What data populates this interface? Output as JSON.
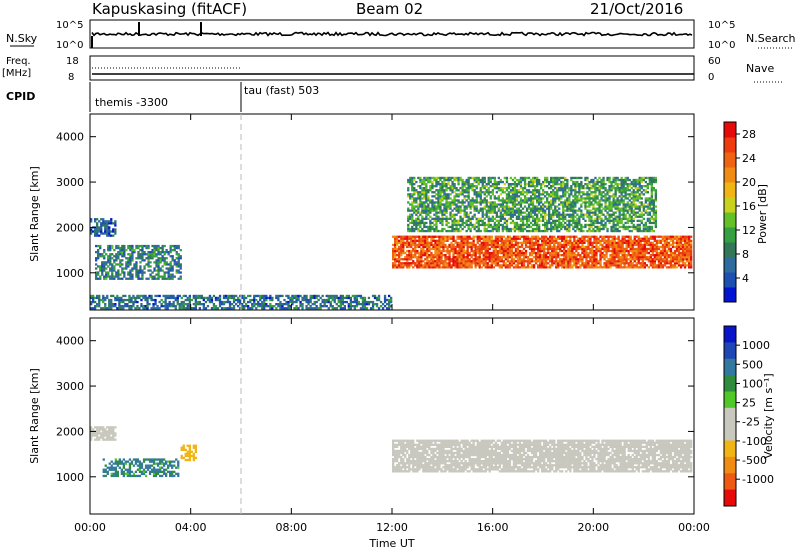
{
  "header": {
    "station": "Kapuskasing (fitACF)",
    "beam": "Beam 02",
    "date": "21/Oct/2016"
  },
  "panels": {
    "nsky": {
      "label": "N.Sky",
      "left_ticks": [
        "10^5",
        "10^0"
      ],
      "right_ticks": [
        "10^5",
        "10^0"
      ],
      "right_label": "N.Search"
    },
    "freq": {
      "label_line1": "Freq.",
      "label_line2": "[MHz]",
      "left_ticks": [
        "18",
        "8"
      ],
      "right_ticks": [
        "60",
        "0"
      ],
      "right_label": "Nave"
    },
    "cpid": {
      "label": "CPID",
      "segments": [
        "themis -3300",
        "tau (fast) 503"
      ]
    }
  },
  "colors": {
    "scale": [
      "#0014d2",
      "#1e50b4",
      "#2e6ca0",
      "#327858",
      "#34a040",
      "#64c028",
      "#c8d21e",
      "#f0b414",
      "#f08c14",
      "#ee6414",
      "#ee3c10",
      "#e60a0a"
    ],
    "velocity": [
      "#0a14c8",
      "#1e46b4",
      "#3278a0",
      "#2e8c3c",
      "#50c828",
      "#c8c8be",
      "#c8c8be",
      "#f0b414",
      "#f08c14",
      "#ee5a14",
      "#e60a0a"
    ],
    "ground": "#c8c8be"
  },
  "chart_data": [
    {
      "type": "heatmap",
      "name": "power",
      "ylabel": "Slant Range [km]",
      "xlabel": "Time UT",
      "x_ticks": [
        "00:00",
        "04:00",
        "08:00",
        "12:00",
        "16:00",
        "20:00",
        "00:00"
      ],
      "x_tick_hours": [
        0,
        4,
        8,
        12,
        16,
        20,
        24
      ],
      "xlim_hours": [
        0,
        24
      ],
      "ylim": [
        180,
        4500
      ],
      "y_ticks": [
        1000,
        2000,
        3000,
        4000
      ],
      "colorbar": {
        "label": "Power [dB]",
        "ticks": [
          4,
          8,
          12,
          16,
          20,
          24,
          28
        ],
        "range": [
          0,
          30
        ]
      },
      "echo_regions": [
        {
          "t0": 0.2,
          "t1": 3.6,
          "r0": 850,
          "r1": 1600,
          "level": 0.25
        },
        {
          "t0": 12.0,
          "t1": 23.9,
          "r0": 1100,
          "r1": 1800,
          "level": 0.85
        },
        {
          "t0": 0.0,
          "t1": 12.0,
          "r0": 200,
          "r1": 500,
          "level": 0.2
        },
        {
          "t0": 12.6,
          "t1": 22.5,
          "r0": 1900,
          "r1": 3100,
          "level": 0.35
        },
        {
          "t0": 0.0,
          "t1": 1.0,
          "r0": 1800,
          "r1": 2200,
          "level": 0.15
        }
      ]
    },
    {
      "type": "heatmap",
      "name": "velocity",
      "ylabel": "Slant Range [km]",
      "xlabel": "Time UT",
      "x_ticks": [
        "00:00",
        "04:00",
        "08:00",
        "12:00",
        "16:00",
        "20:00",
        "00:00"
      ],
      "x_tick_hours": [
        0,
        4,
        8,
        12,
        16,
        20,
        24
      ],
      "xlim_hours": [
        0,
        24
      ],
      "ylim": [
        180,
        4500
      ],
      "y_ticks": [
        1000,
        2000,
        3000,
        4000
      ],
      "colorbar": {
        "label": "Velocity [m s⁻¹]",
        "ticks": [
          "1000",
          "500",
          "100",
          "25",
          "-25",
          "-100",
          "-500",
          "-1000"
        ]
      },
      "echo_regions": [
        {
          "t0": 12.0,
          "t1": 23.9,
          "r0": 1100,
          "r1": 1800,
          "velocity": 0,
          "ground": true
        },
        {
          "t0": 0.5,
          "t1": 3.5,
          "r0": 1000,
          "r1": 1400,
          "velocity": 150
        },
        {
          "t0": 3.6,
          "t1": 4.2,
          "r0": 1350,
          "r1": 1700,
          "velocity": -700
        },
        {
          "t0": 0.0,
          "t1": 1.0,
          "r0": 1800,
          "r1": 2100,
          "velocity": 0,
          "ground": true
        }
      ]
    }
  ]
}
